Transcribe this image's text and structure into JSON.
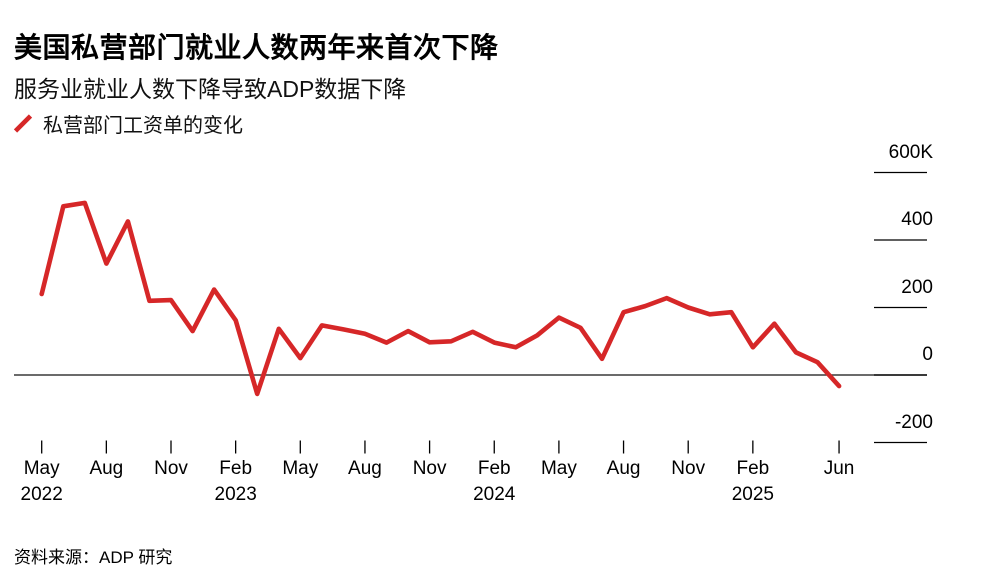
{
  "header": {
    "title": "美国私营部门就业人数两年来首次下降",
    "subtitle": "服务业就业人数下降导致ADP数据下降"
  },
  "legend": {
    "label": "私营部门工资单的变化",
    "marker_icon": "red-diagonal-line",
    "marker_color": "#d62728"
  },
  "source": {
    "text": "资料来源：ADP 研究"
  },
  "chart_data": {
    "type": "line",
    "series_name": "私营部门工资单的变化",
    "unit": "K (thousands of jobs, monthly change)",
    "color": "#d62728",
    "line_width": 4.6,
    "legend_position": "top-left",
    "zero_line": true,
    "y_axis_side": "right",
    "ylim": [
      -300,
      680
    ],
    "months": [
      "2022-05",
      "2022-06",
      "2022-07",
      "2022-08",
      "2022-09",
      "2022-10",
      "2022-11",
      "2022-12",
      "2023-01",
      "2023-02",
      "2023-03",
      "2023-04",
      "2023-05",
      "2023-06",
      "2023-07",
      "2023-08",
      "2023-09",
      "2023-10",
      "2023-11",
      "2023-12",
      "2024-01",
      "2024-02",
      "2024-03",
      "2024-04",
      "2024-05",
      "2024-06",
      "2024-07",
      "2024-08",
      "2024-09",
      "2024-10",
      "2024-11",
      "2024-12",
      "2025-01",
      "2025-02",
      "2025-03",
      "2025-04",
      "2025-05",
      "2025-06"
    ],
    "values": [
      240,
      500,
      510,
      330,
      455,
      220,
      222,
      130,
      253,
      162,
      -56,
      137,
      50,
      147,
      135,
      122,
      96,
      130,
      97,
      100,
      128,
      96,
      82,
      118,
      170,
      140,
      48,
      186,
      204,
      228,
      200,
      180,
      186,
      82,
      152,
      67,
      38,
      -33
    ],
    "yticks": [
      {
        "value": 600,
        "label": "600K"
      },
      {
        "value": 400,
        "label": "400"
      },
      {
        "value": 200,
        "label": "200"
      },
      {
        "value": 0,
        "label": "0"
      },
      {
        "value": -200,
        "label": "-200"
      }
    ],
    "xticks": [
      {
        "index": 0,
        "label": "May",
        "year": "2022"
      },
      {
        "index": 3,
        "label": "Aug",
        "year": ""
      },
      {
        "index": 6,
        "label": "Nov",
        "year": ""
      },
      {
        "index": 9,
        "label": "Feb",
        "year": "2023"
      },
      {
        "index": 12,
        "label": "May",
        "year": ""
      },
      {
        "index": 15,
        "label": "Aug",
        "year": ""
      },
      {
        "index": 18,
        "label": "Nov",
        "year": ""
      },
      {
        "index": 21,
        "label": "Feb",
        "year": "2024"
      },
      {
        "index": 24,
        "label": "May",
        "year": ""
      },
      {
        "index": 27,
        "label": "Aug",
        "year": ""
      },
      {
        "index": 30,
        "label": "Nov",
        "year": ""
      },
      {
        "index": 33,
        "label": "Feb",
        "year": "2025"
      },
      {
        "index": 37,
        "label": "Jun",
        "year": ""
      }
    ]
  }
}
